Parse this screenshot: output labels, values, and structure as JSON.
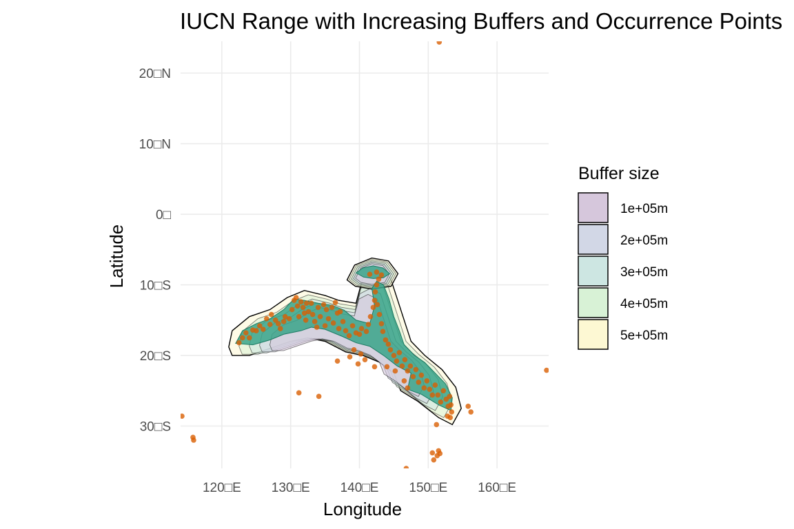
{
  "chart_data": {
    "type": "map",
    "title": "IUCN Range with Increasing Buffers and Occurrence Points",
    "xlabel": "Longitude",
    "ylabel": "Latitude",
    "xlim": [
      114,
      167.5
    ],
    "ylim": [
      -36,
      24.5
    ],
    "x_ticks": [
      {
        "value": 120,
        "label": "120□E"
      },
      {
        "value": 130,
        "label": "130□E"
      },
      {
        "value": 140,
        "label": "140□E"
      },
      {
        "value": 150,
        "label": "150□E"
      },
      {
        "value": 160,
        "label": "160□E"
      }
    ],
    "y_ticks": [
      {
        "value": 20,
        "label": "20□N"
      },
      {
        "value": 10,
        "label": "10□N"
      },
      {
        "value": 0,
        "label": "0□"
      },
      {
        "value": -10,
        "label": "10□S"
      },
      {
        "value": -20,
        "label": "20□S"
      },
      {
        "value": -30,
        "label": "30□S"
      }
    ],
    "grid": true,
    "legend": {
      "title": "Buffer size",
      "position": "right",
      "entries": [
        {
          "label": "1e+05m",
          "color": "#d6c7dc"
        },
        {
          "label": "2e+05m",
          "color": "#d2d7e6"
        },
        {
          "label": "3e+05m",
          "color": "#cde6e2"
        },
        {
          "label": "4e+05m",
          "color": "#d8f2d6"
        },
        {
          "label": "5e+05m",
          "color": "#fdf8d3"
        }
      ]
    },
    "range_color": "#3aa489",
    "point_color": "#d95f02",
    "range_polygons": [
      [
        [
          122,
          -18.3
        ],
        [
          123,
          -16.5
        ],
        [
          125,
          -15.5
        ],
        [
          127,
          -14.8
        ],
        [
          129,
          -13.5
        ],
        [
          130.5,
          -12
        ],
        [
          132,
          -12.2
        ],
        [
          134,
          -12.6
        ],
        [
          136,
          -12.9
        ],
        [
          137.8,
          -13.6
        ],
        [
          139.5,
          -15
        ],
        [
          141.5,
          -15.5
        ],
        [
          142.2,
          -13
        ],
        [
          141.8,
          -10.5
        ],
        [
          142.5,
          -9.5
        ],
        [
          143.5,
          -10
        ],
        [
          144.3,
          -12
        ],
        [
          145,
          -14.5
        ],
        [
          145.8,
          -16.5
        ],
        [
          146.5,
          -18.5
        ],
        [
          148,
          -20
        ],
        [
          149.5,
          -21
        ],
        [
          151,
          -22.5
        ],
        [
          152.5,
          -24
        ],
        [
          153.5,
          -26
        ],
        [
          153.3,
          -27.8
        ],
        [
          151.5,
          -27
        ],
        [
          149,
          -25.5
        ],
        [
          147,
          -24.8
        ],
        [
          147.5,
          -22.5
        ],
        [
          145.5,
          -21.5
        ],
        [
          143.5,
          -20
        ],
        [
          141.5,
          -18.7
        ],
        [
          139.5,
          -18.2
        ],
        [
          137.5,
          -17.3
        ],
        [
          135,
          -16.3
        ],
        [
          133,
          -16
        ],
        [
          131.5,
          -16.5
        ],
        [
          129,
          -17
        ],
        [
          127,
          -17.8
        ],
        [
          124.5,
          -18.5
        ]
      ],
      [
        [
          139.5,
          -8.3
        ],
        [
          140.5,
          -7.6
        ],
        [
          142,
          -7.3
        ],
        [
          143.4,
          -7.6
        ],
        [
          144.4,
          -8.4
        ],
        [
          143.5,
          -9
        ],
        [
          142,
          -9.1
        ],
        [
          140.6,
          -8.9
        ]
      ]
    ],
    "buffer_polygons": [
      [
        [
          121,
          -18.8
        ],
        [
          121.5,
          -16.5
        ],
        [
          124,
          -14.5
        ],
        [
          127,
          -13.5
        ],
        [
          129.5,
          -11.8
        ],
        [
          132,
          -10.8
        ],
        [
          135,
          -11.5
        ],
        [
          137,
          -12.2
        ],
        [
          139.5,
          -12.6
        ],
        [
          140.5,
          -9
        ],
        [
          142.5,
          -8
        ],
        [
          144.5,
          -9
        ],
        [
          145.5,
          -12
        ],
        [
          146.5,
          -15
        ],
        [
          147.5,
          -18
        ],
        [
          149.5,
          -20
        ],
        [
          152,
          -22
        ],
        [
          154,
          -24.5
        ],
        [
          154.8,
          -27.5
        ],
        [
          153.5,
          -29.8
        ],
        [
          151.5,
          -28.8
        ],
        [
          148.5,
          -26.5
        ],
        [
          146,
          -25
        ],
        [
          145,
          -22.5
        ],
        [
          143,
          -21
        ],
        [
          140.5,
          -20
        ],
        [
          138,
          -19.5
        ],
        [
          135,
          -18
        ],
        [
          132.5,
          -17.5
        ],
        [
          130,
          -18
        ],
        [
          127,
          -19
        ],
        [
          124,
          -20
        ],
        [
          121.5,
          -20
        ]
      ],
      [
        [
          138.2,
          -9.3
        ],
        [
          139.3,
          -7.2
        ],
        [
          141.8,
          -6.2
        ],
        [
          144.2,
          -6.6
        ],
        [
          145.6,
          -8.4
        ],
        [
          144.6,
          -10.2
        ],
        [
          141.8,
          -10.6
        ],
        [
          139.4,
          -10.2
        ]
      ]
    ],
    "occurrence_points": [
      [
        122.5,
        -18.2
      ],
      [
        123,
        -17.5
      ],
      [
        123.5,
        -16.8
      ],
      [
        124,
        -17.5
      ],
      [
        124.5,
        -16.4
      ],
      [
        125,
        -16.5
      ],
      [
        125.5,
        -15.8
      ],
      [
        126,
        -16.3
      ],
      [
        126.5,
        -14.8
      ],
      [
        127,
        -15.6
      ],
      [
        127.2,
        -14.2
      ],
      [
        127.8,
        -15
      ],
      [
        128.2,
        -15.5
      ],
      [
        128.5,
        -16.2
      ],
      [
        129,
        -15.2
      ],
      [
        129.2,
        -14.5
      ],
      [
        129.8,
        -14.8
      ],
      [
        130.2,
        -13.5
      ],
      [
        130.5,
        -12.2
      ],
      [
        130.8,
        -11.8
      ],
      [
        131,
        -13
      ],
      [
        131.2,
        -14.5
      ],
      [
        131.5,
        -12.4
      ],
      [
        131.8,
        -13.2
      ],
      [
        132,
        -14
      ],
      [
        132.2,
        -15
      ],
      [
        132.3,
        -12.6
      ],
      [
        132.6,
        -13.8
      ],
      [
        133,
        -12.6
      ],
      [
        133.2,
        -14.2
      ],
      [
        133.5,
        -15.2
      ],
      [
        133.8,
        -16
      ],
      [
        134,
        -13.2
      ],
      [
        134.3,
        -14.5
      ],
      [
        134.8,
        -12.8
      ],
      [
        135,
        -15.8
      ],
      [
        135.2,
        -13.5
      ],
      [
        135.5,
        -14.8
      ],
      [
        136,
        -13.2
      ],
      [
        136.2,
        -15.4
      ],
      [
        136.5,
        -12.5
      ],
      [
        136.8,
        -14
      ],
      [
        137,
        -16.2
      ],
      [
        137.2,
        -13.8
      ],
      [
        137.6,
        -15.2
      ],
      [
        138,
        -16.5
      ],
      [
        138.5,
        -17.2
      ],
      [
        139,
        -15.8
      ],
      [
        139.5,
        -16.8
      ],
      [
        140,
        -17
      ],
      [
        140.3,
        -16.2
      ],
      [
        141,
        -16.6
      ],
      [
        141.3,
        -15.6
      ],
      [
        141.6,
        -14.5
      ],
      [
        142,
        -13.2
      ],
      [
        142.2,
        -12.2
      ],
      [
        142.3,
        -11
      ],
      [
        142.5,
        -10
      ],
      [
        142.8,
        -9.2
      ],
      [
        142.6,
        -12.8
      ],
      [
        142.9,
        -14.2
      ],
      [
        143.2,
        -15.5
      ],
      [
        143.4,
        -16.6
      ],
      [
        143.8,
        -17.8
      ],
      [
        144.2,
        -18.4
      ],
      [
        144.5,
        -19.2
      ],
      [
        145,
        -20
      ],
      [
        145.4,
        -20.8
      ],
      [
        145.8,
        -19.6
      ],
      [
        146.2,
        -21.5
      ],
      [
        146.6,
        -20.6
      ],
      [
        147,
        -22.2
      ],
      [
        147.4,
        -21.5
      ],
      [
        147.8,
        -23
      ],
      [
        148.2,
        -22
      ],
      [
        148.6,
        -23.8
      ],
      [
        149,
        -22.8
      ],
      [
        149.4,
        -24.6
      ],
      [
        149.8,
        -23.6
      ],
      [
        150.2,
        -24.8
      ],
      [
        150.6,
        -25.6
      ],
      [
        151,
        -24.2
      ],
      [
        151.4,
        -25.6
      ],
      [
        151.8,
        -26.6
      ],
      [
        152.2,
        -25
      ],
      [
        152.6,
        -26.2
      ],
      [
        152.9,
        -27.2
      ],
      [
        153.1,
        -25.8
      ],
      [
        153.3,
        -27
      ],
      [
        153.4,
        -28
      ],
      [
        152.8,
        -28.6
      ],
      [
        153.2,
        -28.8
      ],
      [
        141.5,
        -8.5
      ],
      [
        142.5,
        -8.2
      ],
      [
        143.2,
        -8.6
      ],
      [
        140.2,
        -19.8
      ],
      [
        140.8,
        -20.6
      ],
      [
        139.2,
        -19.2
      ],
      [
        138.6,
        -20.2
      ],
      [
        142.2,
        -21.6
      ],
      [
        146.5,
        -23.6
      ],
      [
        147,
        -24.6
      ],
      [
        145.2,
        -22.2
      ],
      [
        144,
        -21.6
      ],
      [
        151.2,
        -29.8
      ],
      [
        151.5,
        -33.5
      ],
      [
        151.7,
        -33.9
      ],
      [
        151.3,
        -34.2
      ],
      [
        150.6,
        -33.8
      ],
      [
        150.8,
        -34.8
      ],
      [
        146.8,
        -36
      ],
      [
        155.8,
        -27.2
      ],
      [
        156.2,
        -28
      ],
      [
        131.2,
        -25.3
      ],
      [
        134.1,
        -25.8
      ],
      [
        115.8,
        -31.6
      ],
      [
        115.9,
        -32
      ],
      [
        114.2,
        -28.6
      ],
      [
        151.6,
        24.4
      ],
      [
        167.2,
        -22.1
      ],
      [
        136.8,
        -20.8
      ],
      [
        139.8,
        -21.2
      ]
    ]
  }
}
